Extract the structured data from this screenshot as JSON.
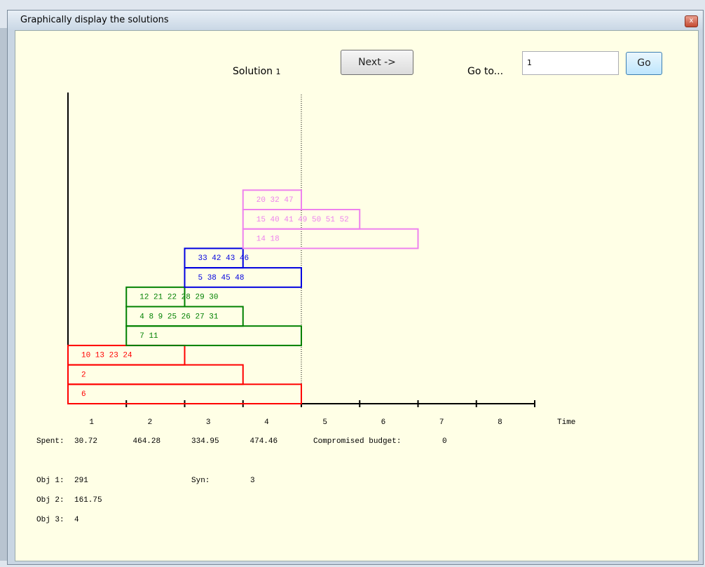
{
  "window": {
    "title": "Graphically display the solutions"
  },
  "toolbar": {
    "solution_label": "Solution",
    "solution_number": 1,
    "next_button": "Next ->",
    "goto_label": "Go to...",
    "goto_value": 1,
    "go_button": "Go"
  },
  "schedule": {
    "axis_label": "Time",
    "periods": [
      1,
      2,
      3,
      4,
      5,
      6,
      7,
      8
    ],
    "marker_at": 4,
    "groups": [
      {
        "color": "#ff0000",
        "bars": [
          {
            "start": 0,
            "end": 4,
            "label": "6"
          },
          {
            "start": 0,
            "end": 3,
            "label": "2"
          },
          {
            "start": 0,
            "end": 2,
            "label": "10 13 23 24"
          }
        ]
      },
      {
        "color": "#008000",
        "bars": [
          {
            "start": 1,
            "end": 4,
            "label": "7 11"
          },
          {
            "start": 1,
            "end": 3,
            "label": "4 8 9 25 26 27 31"
          },
          {
            "start": 1,
            "end": 2,
            "label": "12 21 22 28 29 30"
          }
        ]
      },
      {
        "color": "#0000e0",
        "bars": [
          {
            "start": 2,
            "end": 4,
            "label": "5 38 45 48"
          },
          {
            "start": 2,
            "end": 3,
            "label": "33 42 43 46"
          }
        ]
      },
      {
        "color": "#ee82ee",
        "bars": [
          {
            "start": 3,
            "end": 6,
            "label": "14 18"
          },
          {
            "start": 3,
            "end": 5,
            "label": "15 40 41 49 50 51 52"
          },
          {
            "start": 3,
            "end": 4,
            "label": "20 32 47"
          }
        ]
      }
    ]
  },
  "stats": {
    "spent_label": "Spent:",
    "spent": [
      30.72,
      464.28,
      334.95,
      474.46
    ],
    "budget_label": "Compromised budget:",
    "budget": 0,
    "obj1_label": "Obj 1:",
    "obj1": 291,
    "syn_label": "Syn:",
    "syn": 3,
    "obj2_label": "Obj 2:",
    "obj2": 161.75,
    "obj3_label": "Obj 3:",
    "obj3": 4
  }
}
